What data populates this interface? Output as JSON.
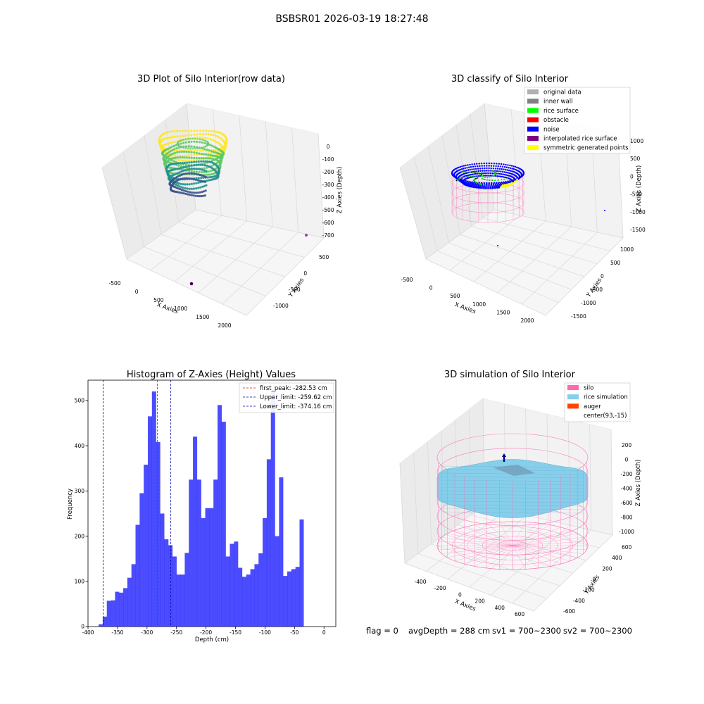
{
  "figure": {
    "suptitle": "BSBSR01 2026-03-19 18:27:48",
    "status": {
      "flag": "flag = 0",
      "avg_depth": "avgDepth = 288 cm",
      "sv1": "sv1 = 700~2300",
      "sv2": "sv2 = 700~2300"
    }
  },
  "chart_data": [
    {
      "type": "scatter",
      "title": "3D Plot of Silo Interior(row data)",
      "xlabel": "X Axies",
      "ylabel": "Y Axies",
      "zlabel": "Z Axies (Depth)",
      "x_ticks": [
        -500,
        0,
        500,
        1000,
        1500,
        2000
      ],
      "y_ticks": [
        -1000,
        -500,
        0,
        500
      ],
      "z_ticks": [
        0,
        -100,
        -200,
        -300,
        -400,
        -500,
        -600,
        -700
      ],
      "colormap": [
        "#fde725",
        "#5ec962",
        "#21918c",
        "#3b528b",
        "#440154"
      ]
    },
    {
      "type": "scatter",
      "title": "3D classify of Silo Interior",
      "xlabel": "X Axies",
      "ylabel": "Y Axies",
      "zlabel": "Z Axies (Depth)",
      "x_ticks": [
        -500,
        0,
        500,
        1000,
        1500,
        2000
      ],
      "y_ticks": [
        -1500,
        -1000,
        -500,
        0,
        500,
        1000
      ],
      "z_ticks": [
        1000,
        500,
        0,
        -500,
        -1000,
        -1500
      ],
      "legend": [
        {
          "label": "original data",
          "color": "#b0b0b0"
        },
        {
          "label": "inner wall",
          "color": "#808080"
        },
        {
          "label": "rice surface",
          "color": "#00ff00"
        },
        {
          "label": "obstacle",
          "color": "#ff0000"
        },
        {
          "label": "noise",
          "color": "#0000ff"
        },
        {
          "label": "interpolated rice surface",
          "color": "#800080"
        },
        {
          "label": "symmetric generated points",
          "color": "#ffff00"
        }
      ]
    },
    {
      "type": "bar",
      "title": "Histogram of Z-Axies (Height) Values",
      "xlabel": "Depth (cm)",
      "ylabel": "Frequency",
      "xlim": [
        -400,
        20
      ],
      "ylim": [
        0,
        545
      ],
      "x_ticks": [
        -400,
        -350,
        -300,
        -250,
        -200,
        -150,
        -100,
        -50,
        0
      ],
      "y_ticks": [
        0,
        100,
        200,
        300,
        400,
        500
      ],
      "bar_color": "#0000ff",
      "bin_start": -382,
      "bin_width": 6.95,
      "counts": [
        5,
        22,
        57,
        58,
        77,
        75,
        85,
        108,
        138,
        225,
        295,
        358,
        465,
        520,
        408,
        250,
        193,
        180,
        155,
        115,
        115,
        163,
        325,
        420,
        325,
        240,
        262,
        262,
        325,
        490,
        453,
        155,
        183,
        188,
        130,
        110,
        115,
        127,
        138,
        162,
        240,
        370,
        520,
        200,
        330,
        112,
        122,
        127,
        132,
        237
      ],
      "lines": [
        {
          "label": "first_peak: -282.53 cm",
          "x": -282.53,
          "color": "#ff0000"
        },
        {
          "label": "Upper_limit: -259.62 cm",
          "x": -259.62,
          "color": "#0000aa"
        },
        {
          "label": "Lower_limit: -374.16 cm",
          "x": -374.16,
          "color": "#0000aa"
        }
      ]
    },
    {
      "type": "scatter",
      "title": "3D simulation of Silo Interior",
      "xlabel": "X Axies",
      "ylabel": "Y Axies",
      "zlabel": "Z Axies (Depth)",
      "x_ticks": [
        -400,
        -200,
        0,
        200,
        400,
        600
      ],
      "y_ticks": [
        -600,
        -400,
        -200,
        0,
        200,
        400,
        600
      ],
      "z_ticks": [
        200,
        0,
        -200,
        -400,
        -600,
        -800,
        -1000
      ],
      "legend": [
        {
          "label": "silo",
          "color": "#ff69b4"
        },
        {
          "label": "rice simulation",
          "color": "#87ceeb"
        },
        {
          "label": "auger",
          "color": "#ff4500"
        },
        {
          "label": "center(93,-15)",
          "color": "#ffffff"
        }
      ]
    }
  ]
}
